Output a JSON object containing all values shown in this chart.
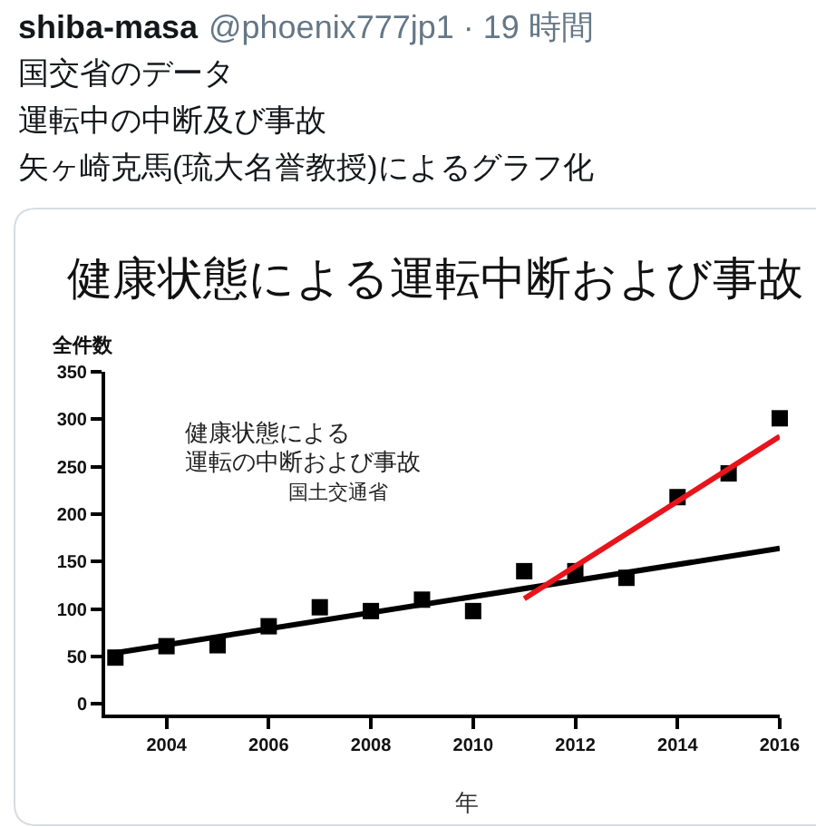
{
  "chart_data": {
    "type": "scatter",
    "title": "健康状態による運転中断および事故",
    "xlabel": "年",
    "ylabel": "全件数",
    "annotations": [
      "shiba-masa",
      "@phoenix777jp1 · 19 時間",
      "国交省のデータ",
      "運転中の中断及び事故",
      "矢ヶ崎克馬(琉大名誉教授)によるグラフ化",
      "健康状態による",
      "運転の中断および事故",
      "国土交通省"
    ],
    "x": [
      2003,
      2004,
      2005,
      2006,
      2007,
      2008,
      2009,
      2010,
      2011,
      2012,
      2013,
      2014,
      2015,
      2016
    ],
    "series": [
      {
        "color": "#000000",
        "marker": "square",
        "values": [
          49,
          61,
          62,
          82,
          102,
          98,
          110,
          98,
          140,
          140,
          133,
          218,
          243,
          301
        ]
      },
      {
        "type": "line",
        "color": "#000000",
        "x": [
          2003,
          2016
        ],
        "values": [
          54,
          164
        ]
      },
      {
        "type": "line",
        "color": "#e8141b",
        "x": [
          2011,
          2016
        ],
        "values": [
          111,
          282
        ]
      }
    ],
    "xlim": [
      2002.8,
      2016
    ],
    "ylim": [
      -11,
      350
    ],
    "xticks": [
      2004,
      2006,
      2008,
      2010,
      2012,
      2014,
      2016
    ],
    "yticks": [
      0,
      50,
      100,
      150,
      200,
      250,
      300,
      350
    ],
    "line_style": "solid"
  }
}
